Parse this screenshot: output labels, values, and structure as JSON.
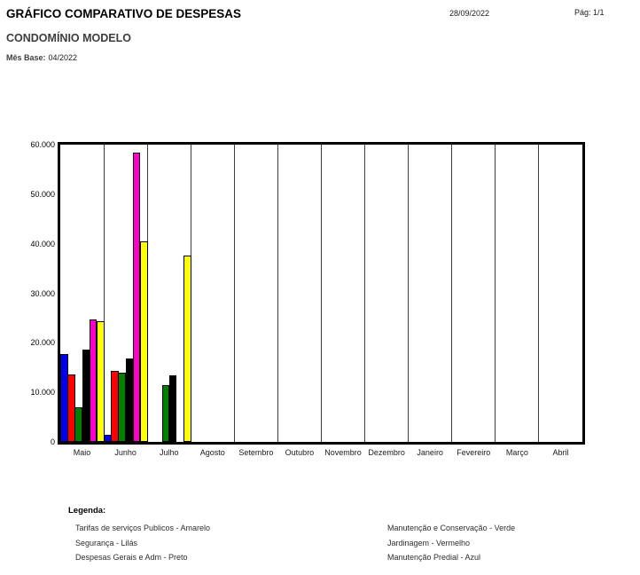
{
  "header": {
    "title": "GRÁFICO COMPARATIVO DE DESPESAS",
    "date": "28/09/2022",
    "page_label": "Pág: 1/1",
    "subtitle": "CONDOMÍNIO MODELO",
    "mes_base_label": "Mês Base:",
    "mes_base_value": "04/2022"
  },
  "chart_data": {
    "type": "bar",
    "title": "GRÁFICO COMPARATIVO DE DESPESAS",
    "categories": [
      "Maio",
      "Junho",
      "Julho",
      "Agosto",
      "Setembro",
      "Outubro",
      "Novembro",
      "Dezembro",
      "Janeiro",
      "Fevereiro",
      "Março",
      "Abril"
    ],
    "series": [
      {
        "name": "Manutenção Predial",
        "color_name": "Azul",
        "color": "#0000ee",
        "values": [
          17800,
          1500,
          0,
          0,
          0,
          0,
          0,
          0,
          0,
          0,
          0,
          0
        ]
      },
      {
        "name": "Jardinagem",
        "color_name": "Vermelho",
        "color": "#fe0000",
        "values": [
          13700,
          14300,
          0,
          0,
          0,
          0,
          0,
          0,
          0,
          0,
          0,
          0
        ]
      },
      {
        "name": "Manutenção e Conservação",
        "color_name": "Verde",
        "color": "#017f01",
        "values": [
          6900,
          13900,
          11400,
          0,
          0,
          0,
          0,
          0,
          0,
          0,
          0,
          0
        ]
      },
      {
        "name": "Despesas Gerais e Adm",
        "color_name": "Preto",
        "color": "#000000",
        "values": [
          18600,
          16900,
          13400,
          0,
          0,
          0,
          0,
          0,
          0,
          0,
          0,
          0
        ]
      },
      {
        "name": "Segurança",
        "color_name": "Lilás",
        "color": "#ff00cc",
        "values": [
          24700,
          58300,
          0,
          0,
          0,
          0,
          0,
          0,
          0,
          0,
          0,
          0
        ]
      },
      {
        "name": "Tarifas de serviços Publicos",
        "color_name": "Amarelo",
        "color": "#ffff00",
        "values": [
          24400,
          40400,
          37600,
          0,
          0,
          0,
          0,
          0,
          0,
          0,
          0,
          0
        ]
      }
    ],
    "ylim": [
      0,
      60000
    ],
    "ytick_labels": [
      "60.000",
      "50.000",
      "40.000",
      "30.000",
      "20.000",
      "10.000",
      "0"
    ],
    "grid": "vertical-month-separators",
    "legend_position": "below-chart"
  },
  "legend": {
    "heading": "Legenda:",
    "left_column": [
      "Tarifas de serviços Publicos - Amarelo",
      "Segurança - Lilás",
      "Despesas Gerais e Adm - Preto"
    ],
    "right_column": [
      "Manutenção e Conservação - Verde",
      "Jardinagem - Vermelho",
      "Manutenção Predial - Azul"
    ]
  }
}
